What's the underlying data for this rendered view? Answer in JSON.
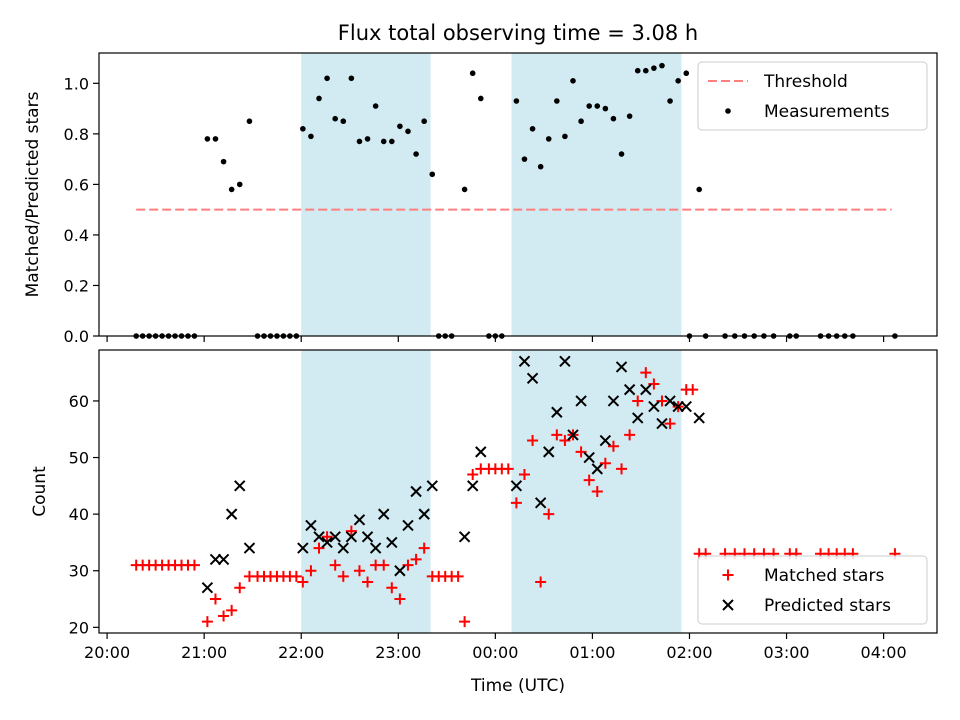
{
  "figure": {
    "title": "Flux total observing time = 3.08 h"
  },
  "chart_data": [
    {
      "type": "scatter",
      "ylabel": "Matched/Predicted stars",
      "xlim": [
        "19:55",
        "04:33"
      ],
      "ylim": [
        0,
        1.12
      ],
      "y_ticks": [
        0.0,
        0.2,
        0.4,
        0.6,
        0.8,
        1.0
      ],
      "y_tick_labels": [
        "0.0",
        "0.2",
        "0.4",
        "0.6",
        "0.8",
        "1.0"
      ],
      "legend_position": "top-right",
      "shaded_regions": [
        [
          "22:00",
          "23:20"
        ],
        [
          "00:10",
          "01:55"
        ]
      ],
      "series": [
        {
          "name": "Threshold",
          "type": "line",
          "style": "dashed",
          "color": "#ff7f7f",
          "x": [
            "20:18",
            "04:05"
          ],
          "y": [
            0.5,
            0.5
          ]
        },
        {
          "name": "Measurements",
          "type": "scatter",
          "marker": "dot",
          "color": "#000000",
          "points": [
            [
              "20:18",
              0
            ],
            [
              "20:22",
              0
            ],
            [
              "20:26",
              0
            ],
            [
              "20:30",
              0
            ],
            [
              "20:34",
              0
            ],
            [
              "20:38",
              0
            ],
            [
              "20:42",
              0
            ],
            [
              "20:46",
              0
            ],
            [
              "20:50",
              0
            ],
            [
              "20:54",
              0
            ],
            [
              "21:02",
              0.78
            ],
            [
              "21:07",
              0.78
            ],
            [
              "21:12",
              0.69
            ],
            [
              "21:17",
              0.58
            ],
            [
              "21:22",
              0.6
            ],
            [
              "21:28",
              0.85
            ],
            [
              "21:33",
              0
            ],
            [
              "21:37",
              0
            ],
            [
              "21:41",
              0
            ],
            [
              "21:45",
              0
            ],
            [
              "21:49",
              0
            ],
            [
              "21:53",
              0
            ],
            [
              "21:57",
              0
            ],
            [
              "22:01",
              0.82
            ],
            [
              "22:06",
              0.79
            ],
            [
              "22:11",
              0.94
            ],
            [
              "22:16",
              1.02
            ],
            [
              "22:21",
              0.86
            ],
            [
              "22:26",
              0.85
            ],
            [
              "22:31",
              1.02
            ],
            [
              "22:36",
              0.77
            ],
            [
              "22:41",
              0.78
            ],
            [
              "22:46",
              0.91
            ],
            [
              "22:51",
              0.77
            ],
            [
              "22:56",
              0.77
            ],
            [
              "23:01",
              0.83
            ],
            [
              "23:06",
              0.81
            ],
            [
              "23:11",
              0.72
            ],
            [
              "23:16",
              0.85
            ],
            [
              "23:21",
              0.64
            ],
            [
              "23:25",
              0
            ],
            [
              "23:29",
              0
            ],
            [
              "23:33",
              0
            ],
            [
              "23:41",
              0.58
            ],
            [
              "23:46",
              1.04
            ],
            [
              "23:51",
              0.94
            ],
            [
              "23:56",
              0
            ],
            [
              "24:00",
              0
            ],
            [
              "24:04",
              0
            ],
            [
              "24:13",
              0.93
            ],
            [
              "24:18",
              0.7
            ],
            [
              "24:23",
              0.82
            ],
            [
              "24:28",
              0.67
            ],
            [
              "24:33",
              0.78
            ],
            [
              "24:38",
              0.93
            ],
            [
              "24:43",
              0.79
            ],
            [
              "24:48",
              1.01
            ],
            [
              "24:53",
              0.85
            ],
            [
              "24:58",
              0.91
            ],
            [
              "25:03",
              0.91
            ],
            [
              "25:08",
              0.9
            ],
            [
              "25:13",
              0.86
            ],
            [
              "25:18",
              0.72
            ],
            [
              "25:23",
              0.87
            ],
            [
              "25:28",
              1.05
            ],
            [
              "25:33",
              1.05
            ],
            [
              "25:38",
              1.06
            ],
            [
              "25:43",
              1.07
            ],
            [
              "25:48",
              0.93
            ],
            [
              "25:53",
              1.01
            ],
            [
              "25:58",
              1.04
            ],
            [
              "26:00",
              0
            ],
            [
              "26:06",
              0.58
            ],
            [
              "26:10",
              0
            ],
            [
              "26:22",
              0
            ],
            [
              "26:28",
              0
            ],
            [
              "26:34",
              0
            ],
            [
              "26:40",
              0
            ],
            [
              "26:46",
              0
            ],
            [
              "26:52",
              0
            ],
            [
              "27:02",
              0
            ],
            [
              "27:06",
              0
            ],
            [
              "27:21",
              0
            ],
            [
              "27:26",
              0
            ],
            [
              "27:31",
              0
            ],
            [
              "27:36",
              0
            ],
            [
              "27:41",
              0
            ],
            [
              "28:07",
              0
            ]
          ]
        }
      ]
    },
    {
      "type": "scatter",
      "xlabel": "Time (UTC)",
      "ylabel": "Count",
      "xlim": [
        "19:55",
        "04:33"
      ],
      "ylim": [
        19,
        69
      ],
      "x_ticks": [
        "20:00",
        "21:00",
        "22:00",
        "23:00",
        "00:00",
        "01:00",
        "02:00",
        "03:00",
        "04:00"
      ],
      "y_ticks": [
        20,
        30,
        40,
        50,
        60
      ],
      "y_tick_labels": [
        "20",
        "30",
        "40",
        "50",
        "60"
      ],
      "legend_position": "lower-right",
      "shaded_regions": [
        [
          "22:00",
          "23:20"
        ],
        [
          "00:10",
          "01:55"
        ]
      ],
      "series": [
        {
          "name": "Matched stars",
          "marker": "plus",
          "color": "#ff0000",
          "points": [
            [
              "20:18",
              31
            ],
            [
              "20:22",
              31
            ],
            [
              "20:26",
              31
            ],
            [
              "20:30",
              31
            ],
            [
              "20:34",
              31
            ],
            [
              "20:38",
              31
            ],
            [
              "20:42",
              31
            ],
            [
              "20:46",
              31
            ],
            [
              "20:50",
              31
            ],
            [
              "20:54",
              31
            ],
            [
              "21:02",
              21
            ],
            [
              "21:07",
              25
            ],
            [
              "21:12",
              22
            ],
            [
              "21:17",
              23
            ],
            [
              "21:22",
              27
            ],
            [
              "21:28",
              29
            ],
            [
              "21:33",
              29
            ],
            [
              "21:37",
              29
            ],
            [
              "21:41",
              29
            ],
            [
              "21:45",
              29
            ],
            [
              "21:49",
              29
            ],
            [
              "21:53",
              29
            ],
            [
              "21:57",
              29
            ],
            [
              "22:01",
              28
            ],
            [
              "22:06",
              30
            ],
            [
              "22:11",
              34
            ],
            [
              "22:16",
              36
            ],
            [
              "22:21",
              31
            ],
            [
              "22:26",
              29
            ],
            [
              "22:31",
              37
            ],
            [
              "22:36",
              30
            ],
            [
              "22:41",
              28
            ],
            [
              "22:46",
              31
            ],
            [
              "22:51",
              31
            ],
            [
              "22:56",
              27
            ],
            [
              "23:01",
              25
            ],
            [
              "23:06",
              31
            ],
            [
              "23:11",
              32
            ],
            [
              "23:16",
              34
            ],
            [
              "23:21",
              29
            ],
            [
              "23:25",
              29
            ],
            [
              "23:29",
              29
            ],
            [
              "23:33",
              29
            ],
            [
              "23:37",
              29
            ],
            [
              "23:41",
              21
            ],
            [
              "23:46",
              47
            ],
            [
              "23:51",
              48
            ],
            [
              "23:56",
              48
            ],
            [
              "24:00",
              48
            ],
            [
              "24:04",
              48
            ],
            [
              "24:08",
              48
            ],
            [
              "24:13",
              42
            ],
            [
              "24:18",
              47
            ],
            [
              "24:23",
              53
            ],
            [
              "24:28",
              28
            ],
            [
              "24:33",
              40
            ],
            [
              "24:38",
              54
            ],
            [
              "24:43",
              53
            ],
            [
              "24:48",
              54
            ],
            [
              "24:53",
              51
            ],
            [
              "24:58",
              46
            ],
            [
              "25:03",
              44
            ],
            [
              "25:08",
              49
            ],
            [
              "25:13",
              52
            ],
            [
              "25:18",
              48
            ],
            [
              "25:23",
              54
            ],
            [
              "25:28",
              60
            ],
            [
              "25:33",
              65
            ],
            [
              "25:38",
              63
            ],
            [
              "25:43",
              60
            ],
            [
              "25:48",
              56
            ],
            [
              "25:53",
              59
            ],
            [
              "25:58",
              62
            ],
            [
              "26:02",
              62
            ],
            [
              "26:06",
              33
            ],
            [
              "26:10",
              33
            ],
            [
              "26:22",
              33
            ],
            [
              "26:28",
              33
            ],
            [
              "26:34",
              33
            ],
            [
              "26:40",
              33
            ],
            [
              "26:46",
              33
            ],
            [
              "26:52",
              33
            ],
            [
              "27:02",
              33
            ],
            [
              "27:06",
              33
            ],
            [
              "27:21",
              33
            ],
            [
              "27:26",
              33
            ],
            [
              "27:31",
              33
            ],
            [
              "27:36",
              33
            ],
            [
              "27:41",
              33
            ],
            [
              "28:07",
              33
            ]
          ]
        },
        {
          "name": "Predicted stars",
          "marker": "x",
          "color": "#000000",
          "points": [
            [
              "21:02",
              27
            ],
            [
              "21:07",
              32
            ],
            [
              "21:12",
              32
            ],
            [
              "21:17",
              40
            ],
            [
              "21:22",
              45
            ],
            [
              "21:28",
              34
            ],
            [
              "22:01",
              34
            ],
            [
              "22:06",
              38
            ],
            [
              "22:11",
              36
            ],
            [
              "22:16",
              35
            ],
            [
              "22:21",
              36
            ],
            [
              "22:26",
              34
            ],
            [
              "22:31",
              36
            ],
            [
              "22:36",
              39
            ],
            [
              "22:41",
              36
            ],
            [
              "22:46",
              34
            ],
            [
              "22:51",
              40
            ],
            [
              "22:56",
              35
            ],
            [
              "23:01",
              30
            ],
            [
              "23:06",
              38
            ],
            [
              "23:11",
              44
            ],
            [
              "23:16",
              40
            ],
            [
              "23:21",
              45
            ],
            [
              "23:41",
              36
            ],
            [
              "23:46",
              45
            ],
            [
              "23:51",
              51
            ],
            [
              "24:13",
              45
            ],
            [
              "24:18",
              67
            ],
            [
              "24:23",
              64
            ],
            [
              "24:28",
              42
            ],
            [
              "24:33",
              51
            ],
            [
              "24:38",
              58
            ],
            [
              "24:43",
              67
            ],
            [
              "24:48",
              54
            ],
            [
              "24:53",
              60
            ],
            [
              "24:58",
              50
            ],
            [
              "25:03",
              48
            ],
            [
              "25:08",
              53
            ],
            [
              "25:13",
              60
            ],
            [
              "25:18",
              66
            ],
            [
              "25:23",
              62
            ],
            [
              "25:28",
              57
            ],
            [
              "25:33",
              62
            ],
            [
              "25:38",
              59
            ],
            [
              "25:43",
              56
            ],
            [
              "25:48",
              60
            ],
            [
              "25:53",
              59
            ],
            [
              "25:58",
              59
            ],
            [
              "26:06",
              57
            ]
          ]
        }
      ]
    }
  ]
}
